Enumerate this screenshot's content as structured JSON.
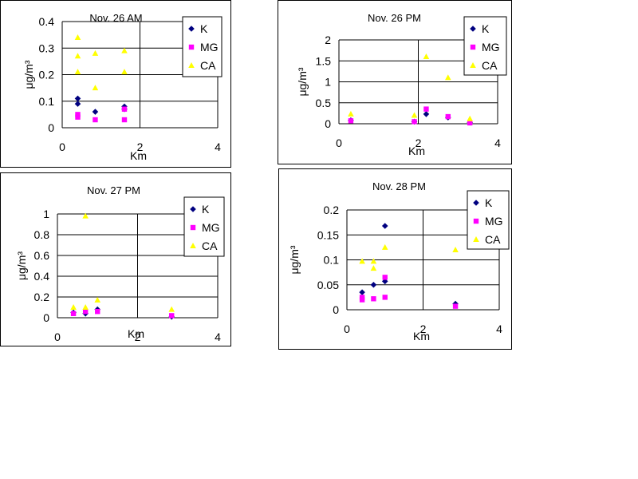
{
  "colors": {
    "K": "#000080",
    "MG": "#ff00ff",
    "CA": "#ffff00"
  },
  "chart_data": [
    {
      "type": "scatter",
      "title": "Nov. 26 AM",
      "xlabel": "Km",
      "ylabel": "μg/m³",
      "xlim": [
        0,
        4
      ],
      "ylim": [
        0,
        0.4
      ],
      "xticks": [
        "0",
        "2",
        "4"
      ],
      "yticks": [
        "0",
        "0.1",
        "0.2",
        "0.3",
        "0.4"
      ],
      "grid": true,
      "legend": "top-right",
      "series": [
        {
          "name": "K",
          "marker": "diamond",
          "x": [
            0.4,
            0.4,
            0.85,
            1.6,
            1.6
          ],
          "y": [
            0.11,
            0.09,
            0.06,
            0.08,
            0.07
          ]
        },
        {
          "name": "MG",
          "marker": "square",
          "x": [
            0.4,
            0.4,
            0.85,
            1.6,
            1.6
          ],
          "y": [
            0.05,
            0.04,
            0.03,
            0.07,
            0.03
          ]
        },
        {
          "name": "CA",
          "marker": "triangle",
          "x": [
            0.4,
            0.4,
            0.4,
            0.85,
            0.85,
            1.6,
            1.6
          ],
          "y": [
            0.34,
            0.27,
            0.21,
            0.28,
            0.15,
            0.29,
            0.21
          ]
        }
      ]
    },
    {
      "type": "scatter",
      "title": "Nov. 26 PM",
      "xlabel": "Km",
      "ylabel": "μg/m³",
      "xlim": [
        0,
        4
      ],
      "ylim": [
        0,
        2
      ],
      "xticks": [
        "0",
        "2",
        "4"
      ],
      "yticks": [
        "0",
        "0.5",
        "1",
        "1.5",
        "2"
      ],
      "grid": true,
      "legend": "top-right",
      "series": [
        {
          "name": "K",
          "marker": "diamond",
          "x": [
            0.3,
            1.9,
            2.2,
            2.75,
            3.3
          ],
          "y": [
            0.08,
            0.05,
            0.23,
            0.15,
            0.03
          ]
        },
        {
          "name": "MG",
          "marker": "square",
          "x": [
            0.3,
            1.9,
            2.2,
            2.75,
            3.3
          ],
          "y": [
            0.07,
            0.05,
            0.35,
            0.17,
            0.02
          ]
        },
        {
          "name": "CA",
          "marker": "triangle",
          "x": [
            0.3,
            1.9,
            2.2,
            2.75,
            3.3
          ],
          "y": [
            0.23,
            0.2,
            1.6,
            1.1,
            0.12
          ]
        }
      ]
    },
    {
      "type": "scatter",
      "title": "Nov. 27 PM",
      "xlabel": "Km",
      "ylabel": "μg/m³",
      "xlim": [
        0,
        4
      ],
      "ylim": [
        0,
        1
      ],
      "xticks": [
        "0",
        "2",
        "4"
      ],
      "yticks": [
        "0",
        "0.2",
        "0.4",
        "0.6",
        "0.8",
        "1"
      ],
      "grid": true,
      "legend": "top-right",
      "series": [
        {
          "name": "K",
          "marker": "diamond",
          "x": [
            0.4,
            0.7,
            1.0,
            2.85
          ],
          "y": [
            0.05,
            0.04,
            0.08,
            0.01
          ]
        },
        {
          "name": "MG",
          "marker": "square",
          "x": [
            0.4,
            0.7,
            1.0,
            2.85
          ],
          "y": [
            0.04,
            0.06,
            0.06,
            0.02
          ]
        },
        {
          "name": "CA",
          "marker": "triangle",
          "x": [
            0.4,
            0.7,
            0.7,
            1.0,
            2.85
          ],
          "y": [
            0.1,
            0.1,
            0.98,
            0.17,
            0.08
          ]
        }
      ]
    },
    {
      "type": "scatter",
      "title": "Nov. 28 PM",
      "xlabel": "Km",
      "ylabel": "μg/m³",
      "xlim": [
        0,
        4
      ],
      "ylim": [
        0,
        0.2
      ],
      "xticks": [
        "0",
        "2",
        "4"
      ],
      "yticks": [
        "0",
        "0.05",
        "0.1",
        "0.15",
        "0.2"
      ],
      "grid": true,
      "legend": "top-right",
      "series": [
        {
          "name": "K",
          "marker": "diamond",
          "x": [
            0.4,
            0.7,
            1.0,
            1.0,
            2.85
          ],
          "y": [
            0.035,
            0.05,
            0.057,
            0.168,
            0.012
          ]
        },
        {
          "name": "MG",
          "marker": "square",
          "x": [
            0.4,
            0.4,
            0.7,
            1.0,
            1.0,
            2.85
          ],
          "y": [
            0.025,
            0.02,
            0.022,
            0.065,
            0.025,
            0.007
          ]
        },
        {
          "name": "CA",
          "marker": "triangle",
          "x": [
            0.4,
            0.7,
            0.7,
            1.0,
            2.85
          ],
          "y": [
            0.097,
            0.097,
            0.083,
            0.125,
            0.12
          ]
        }
      ]
    }
  ]
}
